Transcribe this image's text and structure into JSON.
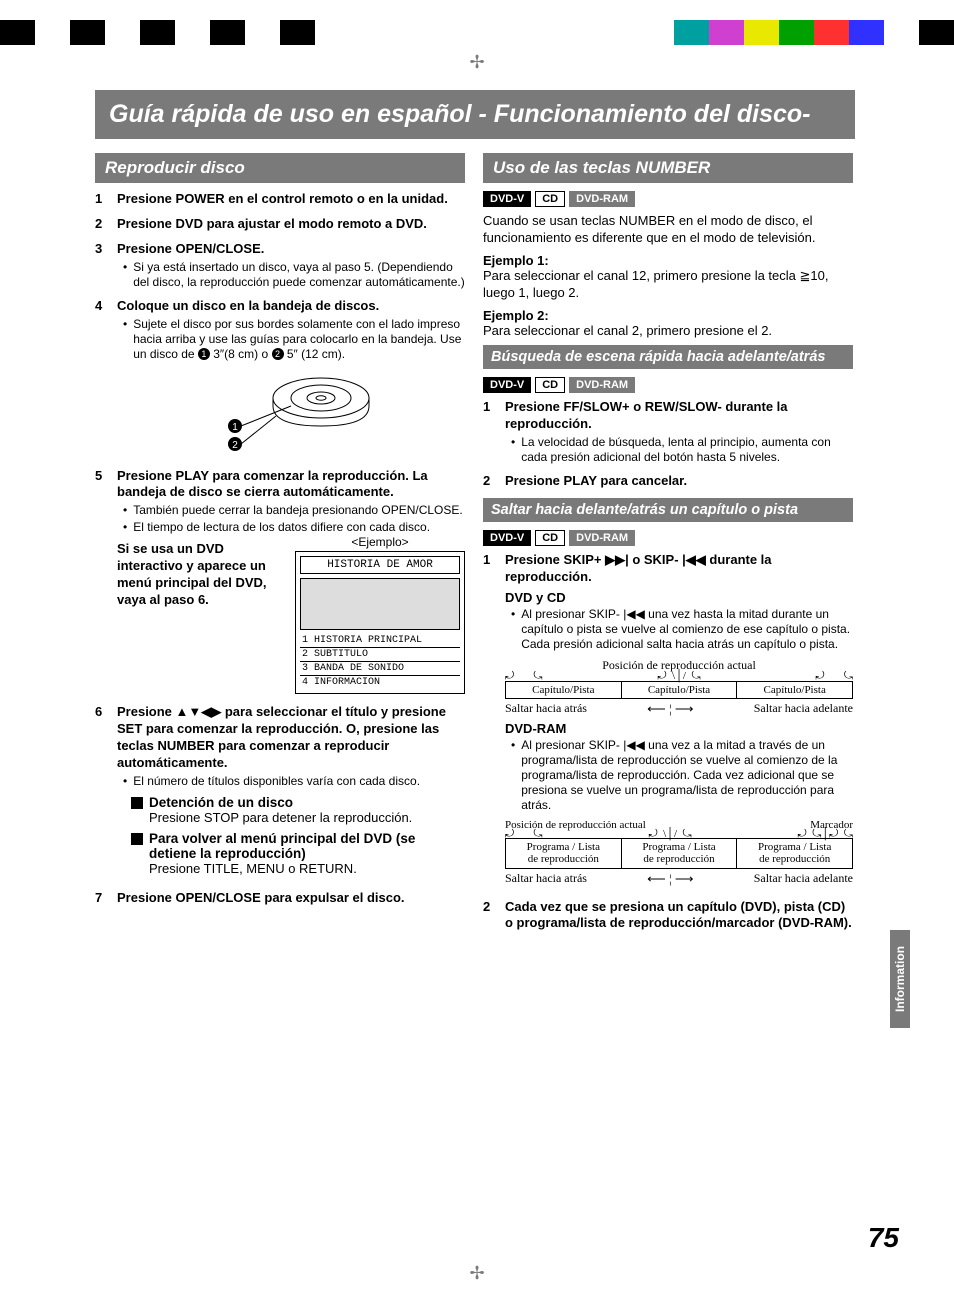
{
  "page": {
    "number": "75",
    "side_tab": "Information"
  },
  "color_bar": {
    "left": [
      "#000000",
      "#ffffff",
      "#000000",
      "#ffffff",
      "#000000",
      "#ffffff",
      "#000000",
      "#ffffff",
      "#000000"
    ],
    "right": [
      "#00a0a0",
      "#d040d0",
      "#e8e800",
      "#00a000",
      "#ff3030",
      "#3030ff",
      "#ffffff",
      "#000000"
    ]
  },
  "main_title": "Guía rápida de uso en español - Funcionamiento del disco-",
  "left": {
    "hdr": "Reproducir disco",
    "s1_num": "1",
    "s1": "Presione POWER en el control remoto o en la unidad.",
    "s2_num": "2",
    "s2": "Presione DVD para ajustar el modo remoto a DVD.",
    "s3_num": "3",
    "s3": "Presione OPEN/CLOSE.",
    "s3b": "Si ya está insertado un disco, vaya  al paso 5. (Dependiendo del disco, la reproducción puede comenzar automáticamente.)",
    "s4_num": "4",
    "s4": "Coloque un disco en la bandeja de discos.",
    "s4b_a": "Sujete el disco por sus bordes solamente con el lado impreso hacia arriba y use las guías para colocarlo en la bandeja. Use un disco de ",
    "s4b_dim1": " 3″(8 cm) o ",
    "s4b_dim2": " 5″ (12 cm).",
    "s5_num": "5",
    "s5": "Presione PLAY para comenzar la reproducción. La bandeja de disco se cierra automáticamente.",
    "s5b1": "También puede cerrar la bandeja presionando OPEN/CLOSE.",
    "s5b2": "El tiempo de lectura de los datos difiere con cada disco.",
    "ej_label": "<Ejemplo>",
    "interactive": "Si se usa un DVD interactivo y aparece un menú principal del DVD, vaya al paso 6.",
    "ej_title": "HISTORIA DE AMOR",
    "ej_1": "1 HISTORIA PRINCIPAL",
    "ej_2": "2 SUBTITULO",
    "ej_3": "3 BANDA DE SONIDO",
    "ej_4": "4 INFORMACION",
    "s6_num": "6",
    "s6": "Presione  ▲▼◀▶  para seleccionar el título y presione SET para comenzar la reproducción. O, presione las teclas NUMBER para comenzar a reproducir automáticamente.",
    "s6b": "El número de títulos disponibles varía con cada disco.",
    "stop_hdr": "Detención de un disco",
    "stop_body": "Presione STOP para detener la reproducción.",
    "menu_hdr": "Para volver al menú principal del DVD (se detiene la reproducción)",
    "menu_body": "Presione TITLE, MENU o RETURN.",
    "s7_num": "7",
    "s7": "Presione OPEN/CLOSE para expulsar el disco."
  },
  "right": {
    "hdr1": "Uso de las teclas NUMBER",
    "badges": {
      "dvdv": "DVD-V",
      "cd": "CD",
      "dvdram": "DVD-RAM"
    },
    "p1": "Cuando se usan teclas NUMBER en el modo de disco, el funcionamiento es diferente que en el modo de televisión.",
    "ex1_l": "Ejemplo 1:",
    "ex1": "Para seleccionar el canal 12, primero presione la tecla ≧10, luego 1, luego 2.",
    "ex2_l": "Ejemplo 2:",
    "ex2": "Para seleccionar el canal 2, primero presione el 2.",
    "hdr2": "Búsqueda de escena rápida hacia adelante/atrás",
    "ff1_num": "1",
    "ff1": "Presione FF/SLOW+ o REW/SLOW- durante la reproducción.",
    "ff1b": "La velocidad de búsqueda, lenta al principio, aumenta con cada presión adicional del botón hasta 5 niveles.",
    "ff2_num": "2",
    "ff2": "Presione PLAY para cancelar.",
    "hdr3": "Saltar hacia delante/atrás un capítulo o pista",
    "sk1_num": "1",
    "sk1": "Presione SKIP+ ▶▶| o SKIP- |◀◀ durante la reproducción.",
    "dvdcd_l": "DVD y CD",
    "dvdcd_b": "Al presionar SKIP- |◀◀ una vez hasta la mitad durante un capítulo o pista se vuelve al comienzo de ese capítulo o pista. Cada presión adicional salta hacia atrás un capítulo o pista.",
    "diag1": {
      "pos": "Posición de reproducción actual",
      "cell": "Capítulo/Pista",
      "back": "Saltar hacia atrás",
      "fwd": "Saltar hacia adelante"
    },
    "dvdram_l": "DVD-RAM",
    "dvdram_b": "Al presionar SKIP- |◀◀ una vez a la mitad a través de un programa/lista de reproducción se vuelve al comienzo de la programa/lista de reproducción. Cada vez adicional que se presiona se vuelve un programa/lista de reproducción para atrás.",
    "diag2": {
      "pos": "Posición de reproducción actual",
      "marker": "Marcador",
      "cell1": "Programa / Lista",
      "cell2": "de reproducción",
      "back": "Saltar hacia atrás",
      "fwd": "Saltar hacia adelante"
    },
    "sk2_num": "2",
    "sk2": "Cada vez que se presiona un capítulo (DVD), pista (CD) o programa/lista de reproducción/marcador (DVD-RAM)."
  }
}
